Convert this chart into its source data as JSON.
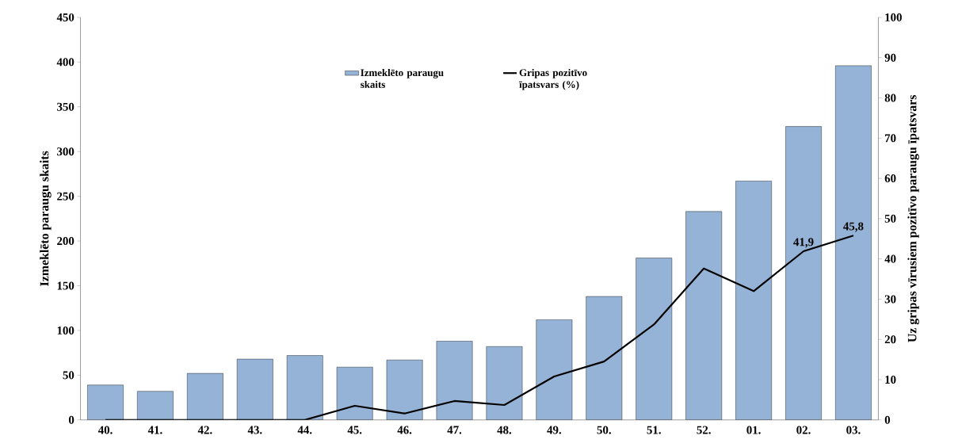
{
  "chart_data": {
    "type": "bar",
    "ylabel": "Izmeklēto paraugu skaits",
    "y2label": "Uz gripas vīrusiem pozitīvo paraugu īpatsvars",
    "categories": [
      "40.",
      "41.",
      "42.",
      "43.",
      "44.",
      "45.",
      "46.",
      "47.",
      "48.",
      "49.",
      "50.",
      "51.",
      "52.",
      "01.",
      "02.",
      "03."
    ],
    "series": [
      {
        "name": "Izmeklēto paraugu skaits",
        "color": "#95b3d7",
        "values": [
          39,
          32,
          52,
          68,
          72,
          59,
          67,
          88,
          82,
          112,
          138,
          181,
          233,
          267,
          328,
          396
        ]
      },
      {
        "name": "Gripas pozitīvo īpatsvars (%)",
        "type": "line",
        "axis": "y2",
        "color": "#000000",
        "values": [
          0,
          0,
          0,
          0,
          0,
          3.5,
          1.6,
          4.7,
          3.7,
          10.8,
          14.5,
          23.7,
          37.6,
          32,
          41.9,
          45.8
        ],
        "value_labels": [
          null,
          null,
          null,
          null,
          null,
          null,
          null,
          null,
          null,
          null,
          null,
          null,
          null,
          null,
          "41,9",
          "45,8"
        ]
      }
    ],
    "ylim": [
      0,
      450
    ],
    "yticks": [
      0,
      50,
      100,
      150,
      200,
      250,
      300,
      350,
      400,
      450
    ],
    "y2lim": [
      0,
      100
    ],
    "y2ticks": [
      0,
      10,
      20,
      30,
      40,
      50,
      60,
      70,
      80,
      90,
      100
    ],
    "legend": "top",
    "grid": false,
    "marker": "none",
    "line_style": "solid"
  }
}
